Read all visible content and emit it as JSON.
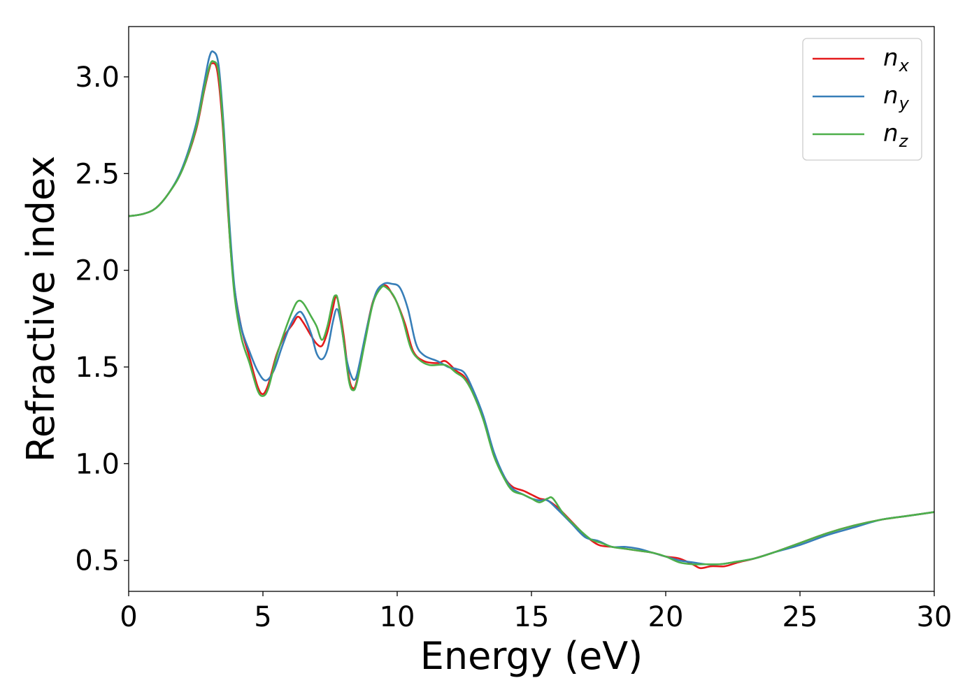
{
  "chart_data": {
    "type": "line",
    "xlabel": "Energy (eV)",
    "ylabel": "Refractive index",
    "xlim": [
      0,
      30
    ],
    "ylim": [
      0.34,
      3.26
    ],
    "xticks": [
      0,
      5,
      10,
      15,
      20,
      25,
      30
    ],
    "xtick_labels": [
      "0",
      "5",
      "10",
      "15",
      "20",
      "25",
      "30"
    ],
    "yticks": [
      0.5,
      1.0,
      1.5,
      2.0,
      2.5,
      3.0
    ],
    "ytick_labels": [
      "0.5",
      "1.0",
      "1.5",
      "2.0",
      "2.5",
      "3.0"
    ],
    "grid": false,
    "legend_position": "top-right",
    "series": [
      {
        "name": "n",
        "sub": "x",
        "color": "#e41a1c",
        "points": [
          [
            0,
            2.28
          ],
          [
            0.5,
            2.29
          ],
          [
            1.0,
            2.32
          ],
          [
            1.5,
            2.4
          ],
          [
            2.0,
            2.52
          ],
          [
            2.5,
            2.72
          ],
          [
            2.8,
            2.92
          ],
          [
            3.0,
            3.04
          ],
          [
            3.1,
            3.07
          ],
          [
            3.3,
            3.03
          ],
          [
            3.5,
            2.75
          ],
          [
            3.7,
            2.3
          ],
          [
            3.9,
            1.95
          ],
          [
            4.2,
            1.7
          ],
          [
            4.5,
            1.55
          ],
          [
            4.8,
            1.4
          ],
          [
            5.0,
            1.36
          ],
          [
            5.2,
            1.41
          ],
          [
            5.5,
            1.56
          ],
          [
            5.8,
            1.66
          ],
          [
            6.1,
            1.72
          ],
          [
            6.3,
            1.76
          ],
          [
            6.5,
            1.73
          ],
          [
            6.8,
            1.66
          ],
          [
            7.0,
            1.62
          ],
          [
            7.2,
            1.61
          ],
          [
            7.4,
            1.68
          ],
          [
            7.6,
            1.8
          ],
          [
            7.7,
            1.86
          ],
          [
            7.8,
            1.84
          ],
          [
            8.0,
            1.67
          ],
          [
            8.2,
            1.45
          ],
          [
            8.35,
            1.39
          ],
          [
            8.5,
            1.43
          ],
          [
            8.8,
            1.65
          ],
          [
            9.1,
            1.84
          ],
          [
            9.4,
            1.91
          ],
          [
            9.6,
            1.92
          ],
          [
            9.8,
            1.88
          ],
          [
            10.0,
            1.83
          ],
          [
            10.3,
            1.72
          ],
          [
            10.6,
            1.58
          ],
          [
            11.0,
            1.53
          ],
          [
            11.5,
            1.52
          ],
          [
            11.8,
            1.53
          ],
          [
            12.2,
            1.48
          ],
          [
            12.5,
            1.45
          ],
          [
            12.8,
            1.38
          ],
          [
            13.2,
            1.24
          ],
          [
            13.6,
            1.05
          ],
          [
            14.0,
            0.93
          ],
          [
            14.3,
            0.88
          ],
          [
            14.7,
            0.86
          ],
          [
            15.0,
            0.84
          ],
          [
            15.3,
            0.82
          ],
          [
            15.6,
            0.81
          ],
          [
            16.0,
            0.77
          ],
          [
            16.5,
            0.7
          ],
          [
            17.0,
            0.63
          ],
          [
            17.5,
            0.58
          ],
          [
            18.0,
            0.57
          ],
          [
            18.5,
            0.56
          ],
          [
            19.0,
            0.55
          ],
          [
            19.5,
            0.54
          ],
          [
            20.0,
            0.52
          ],
          [
            20.5,
            0.51
          ],
          [
            21.0,
            0.48
          ],
          [
            21.3,
            0.46
          ],
          [
            21.7,
            0.47
          ],
          [
            22.2,
            0.47
          ],
          [
            22.7,
            0.49
          ],
          [
            23.3,
            0.51
          ],
          [
            24.0,
            0.54
          ],
          [
            25.0,
            0.59
          ],
          [
            26.0,
            0.64
          ],
          [
            27.0,
            0.68
          ],
          [
            28.0,
            0.71
          ],
          [
            29.0,
            0.73
          ],
          [
            30.0,
            0.75
          ]
        ]
      },
      {
        "name": "n",
        "sub": "y",
        "color": "#377eb8",
        "points": [
          [
            0,
            2.28
          ],
          [
            0.5,
            2.29
          ],
          [
            1.0,
            2.32
          ],
          [
            1.5,
            2.4
          ],
          [
            2.0,
            2.53
          ],
          [
            2.5,
            2.75
          ],
          [
            2.8,
            2.96
          ],
          [
            3.0,
            3.1
          ],
          [
            3.15,
            3.13
          ],
          [
            3.35,
            3.06
          ],
          [
            3.55,
            2.72
          ],
          [
            3.75,
            2.25
          ],
          [
            3.95,
            1.9
          ],
          [
            4.2,
            1.7
          ],
          [
            4.5,
            1.58
          ],
          [
            4.8,
            1.48
          ],
          [
            5.1,
            1.43
          ],
          [
            5.4,
            1.48
          ],
          [
            5.7,
            1.6
          ],
          [
            6.0,
            1.71
          ],
          [
            6.3,
            1.78
          ],
          [
            6.5,
            1.77
          ],
          [
            6.8,
            1.67
          ],
          [
            7.0,
            1.57
          ],
          [
            7.2,
            1.54
          ],
          [
            7.4,
            1.59
          ],
          [
            7.6,
            1.73
          ],
          [
            7.75,
            1.8
          ],
          [
            7.9,
            1.73
          ],
          [
            8.1,
            1.55
          ],
          [
            8.3,
            1.45
          ],
          [
            8.45,
            1.44
          ],
          [
            8.6,
            1.52
          ],
          [
            8.9,
            1.72
          ],
          [
            9.2,
            1.88
          ],
          [
            9.5,
            1.93
          ],
          [
            9.8,
            1.93
          ],
          [
            10.1,
            1.91
          ],
          [
            10.4,
            1.8
          ],
          [
            10.7,
            1.62
          ],
          [
            11.0,
            1.56
          ],
          [
            11.5,
            1.53
          ],
          [
            11.9,
            1.5
          ],
          [
            12.2,
            1.49
          ],
          [
            12.5,
            1.47
          ],
          [
            12.8,
            1.39
          ],
          [
            13.2,
            1.25
          ],
          [
            13.6,
            1.06
          ],
          [
            14.0,
            0.93
          ],
          [
            14.3,
            0.87
          ],
          [
            14.7,
            0.84
          ],
          [
            15.0,
            0.82
          ],
          [
            15.3,
            0.81
          ],
          [
            15.6,
            0.81
          ],
          [
            16.0,
            0.76
          ],
          [
            16.5,
            0.69
          ],
          [
            17.0,
            0.62
          ],
          [
            17.5,
            0.6
          ],
          [
            18.0,
            0.57
          ],
          [
            18.5,
            0.57
          ],
          [
            19.0,
            0.56
          ],
          [
            19.5,
            0.54
          ],
          [
            20.0,
            0.52
          ],
          [
            20.5,
            0.5
          ],
          [
            21.0,
            0.49
          ],
          [
            21.5,
            0.48
          ],
          [
            22.0,
            0.48
          ],
          [
            22.5,
            0.49
          ],
          [
            23.3,
            0.51
          ],
          [
            24.0,
            0.54
          ],
          [
            25.0,
            0.58
          ],
          [
            26.0,
            0.63
          ],
          [
            27.0,
            0.67
          ],
          [
            28.0,
            0.71
          ],
          [
            29.0,
            0.73
          ],
          [
            30.0,
            0.75
          ]
        ]
      },
      {
        "name": "n",
        "sub": "z",
        "color": "#4daf4a",
        "points": [
          [
            0,
            2.28
          ],
          [
            0.5,
            2.29
          ],
          [
            1.0,
            2.32
          ],
          [
            1.5,
            2.4
          ],
          [
            2.0,
            2.52
          ],
          [
            2.5,
            2.73
          ],
          [
            2.8,
            2.93
          ],
          [
            3.0,
            3.05
          ],
          [
            3.15,
            3.08
          ],
          [
            3.35,
            3.02
          ],
          [
            3.55,
            2.68
          ],
          [
            3.75,
            2.2
          ],
          [
            3.95,
            1.86
          ],
          [
            4.2,
            1.65
          ],
          [
            4.5,
            1.52
          ],
          [
            4.8,
            1.38
          ],
          [
            5.0,
            1.35
          ],
          [
            5.2,
            1.39
          ],
          [
            5.5,
            1.55
          ],
          [
            5.8,
            1.68
          ],
          [
            6.1,
            1.79
          ],
          [
            6.3,
            1.84
          ],
          [
            6.5,
            1.83
          ],
          [
            6.8,
            1.76
          ],
          [
            7.0,
            1.71
          ],
          [
            7.2,
            1.64
          ],
          [
            7.4,
            1.71
          ],
          [
            7.6,
            1.84
          ],
          [
            7.7,
            1.87
          ],
          [
            7.8,
            1.84
          ],
          [
            8.0,
            1.64
          ],
          [
            8.2,
            1.43
          ],
          [
            8.35,
            1.38
          ],
          [
            8.5,
            1.42
          ],
          [
            8.8,
            1.63
          ],
          [
            9.1,
            1.83
          ],
          [
            9.4,
            1.91
          ],
          [
            9.6,
            1.91
          ],
          [
            9.9,
            1.86
          ],
          [
            10.2,
            1.75
          ],
          [
            10.5,
            1.6
          ],
          [
            10.8,
            1.54
          ],
          [
            11.2,
            1.51
          ],
          [
            11.8,
            1.51
          ],
          [
            12.2,
            1.47
          ],
          [
            12.5,
            1.44
          ],
          [
            12.8,
            1.37
          ],
          [
            13.2,
            1.23
          ],
          [
            13.6,
            1.04
          ],
          [
            14.0,
            0.92
          ],
          [
            14.3,
            0.86
          ],
          [
            14.7,
            0.84
          ],
          [
            15.0,
            0.82
          ],
          [
            15.3,
            0.8
          ],
          [
            15.6,
            0.82
          ],
          [
            15.8,
            0.82
          ],
          [
            16.2,
            0.74
          ],
          [
            16.7,
            0.67
          ],
          [
            17.2,
            0.61
          ],
          [
            17.6,
            0.59
          ],
          [
            18.0,
            0.57
          ],
          [
            18.5,
            0.56
          ],
          [
            19.0,
            0.55
          ],
          [
            19.5,
            0.54
          ],
          [
            20.0,
            0.52
          ],
          [
            20.5,
            0.49
          ],
          [
            21.0,
            0.48
          ],
          [
            21.5,
            0.48
          ],
          [
            22.0,
            0.48
          ],
          [
            22.5,
            0.49
          ],
          [
            23.3,
            0.51
          ],
          [
            24.0,
            0.54
          ],
          [
            25.0,
            0.59
          ],
          [
            26.0,
            0.64
          ],
          [
            27.0,
            0.68
          ],
          [
            28.0,
            0.71
          ],
          [
            29.0,
            0.73
          ],
          [
            30.0,
            0.75
          ]
        ]
      }
    ]
  }
}
